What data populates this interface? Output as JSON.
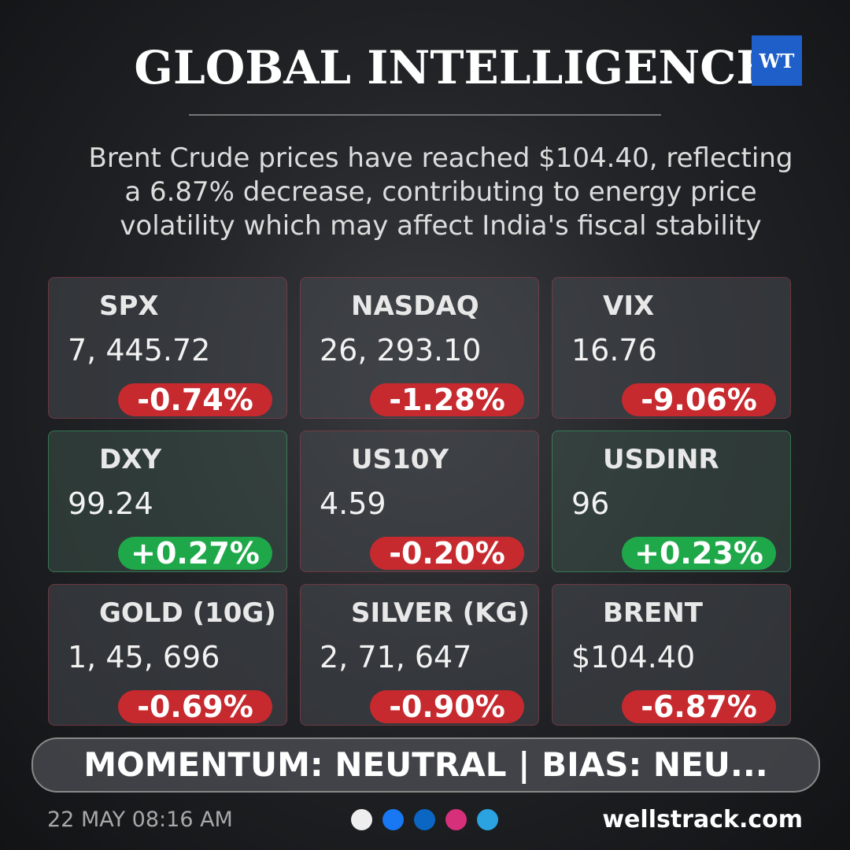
{
  "header": {
    "title": "GLOBAL INTELLIGENCE",
    "logo": "WT"
  },
  "summary": [
    "Brent Crude prices have reached $104.40, reflecting",
    "a 6.87% decrease, contributing to energy price",
    "volatility which may affect India's fiscal stability"
  ],
  "tiles": [
    {
      "name": "SPX",
      "value": "7, 445.72",
      "change": "-0.74%",
      "color": "#c62a2f"
    },
    {
      "name": "NASDAQ",
      "value": "26, 293.10",
      "change": "-1.28%",
      "color": "#c62a2f"
    },
    {
      "name": "VIX",
      "value": "16.76",
      "change": "-9.06%",
      "color": "#c62a2f"
    },
    {
      "name": "DXY",
      "value": "99.24",
      "change": "+0.27%",
      "color": "#1fa84a"
    },
    {
      "name": "US10Y",
      "value": "4.59",
      "change": "-0.20%",
      "color": "#c62a2f"
    },
    {
      "name": "USDINR",
      "value": "96",
      "change": "+0.23%",
      "color": "#1fa84a"
    },
    {
      "name": "GOLD (10G)",
      "value": "1, 45, 696",
      "change": "-0.69%",
      "color": "#c62a2f"
    },
    {
      "name": "SILVER (KG)",
      "value": "2, 71, 647",
      "change": "-0.90%",
      "color": "#c62a2f"
    },
    {
      "name": "BRENT",
      "value": "$104.40",
      "change": "-6.87%",
      "color": "#c62a2f"
    }
  ],
  "banner": "MOMENTUM: NEUTRAL | BIAS: NEU...",
  "footer": {
    "timestamp": "22 MAY 08:16 AM",
    "website": "wellstrack.com"
  }
}
